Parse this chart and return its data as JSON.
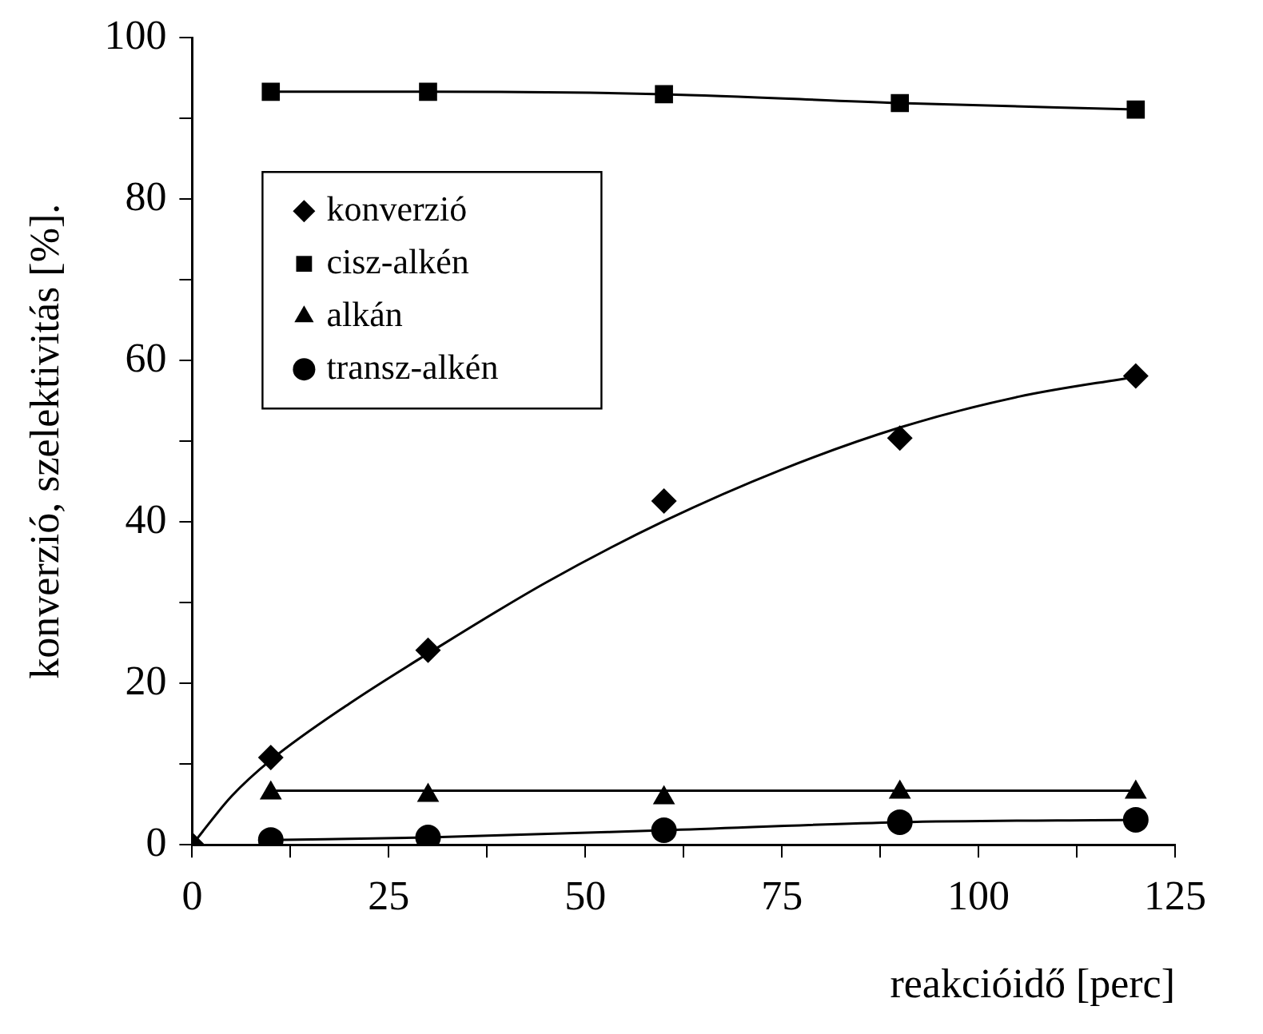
{
  "chart_data": {
    "type": "line",
    "xlabel": "reakcióidő [perc]",
    "ylabel": "konverzió, szelektivitás [%].",
    "xlim": [
      0,
      125
    ],
    "xticks": [
      0,
      {
        "value": 12.5,
        "label": null
      },
      25,
      {
        "value": 37.5,
        "label": null
      },
      50,
      {
        "value": 62.5,
        "label": null
      },
      75,
      {
        "value": 87.5,
        "label": null
      },
      100,
      {
        "value": 112.5,
        "label": null
      },
      125
    ],
    "ylim": [
      0,
      100
    ],
    "yticks": [
      0,
      {
        "value": 10,
        "label": null
      },
      20,
      {
        "value": 30,
        "label": null
      },
      40,
      {
        "value": 50,
        "label": null
      },
      60,
      {
        "value": 70,
        "label": null
      },
      80,
      {
        "value": 90,
        "label": null
      },
      100
    ],
    "grid": false,
    "legend": "top left",
    "series": [
      {
        "name": "konverzió",
        "type": "scatter",
        "color": "#000000",
        "marker": "diamond",
        "x": [
          0,
          10,
          30,
          60,
          90,
          120
        ],
        "values": [
          0,
          10.8,
          24.1,
          42.6,
          50.4,
          58.1
        ]
      },
      {
        "name": "cisz-alkén",
        "type": "line",
        "color": "#000000",
        "marker": "square",
        "x": [
          10,
          30,
          60,
          90,
          120
        ],
        "values": [
          93.3,
          93.3,
          93.0,
          91.9,
          91.1
        ]
      },
      {
        "name": "alkán",
        "type": "scatter",
        "color": "#000000",
        "marker": "triangle",
        "x": [
          10,
          30,
          60,
          90,
          120
        ],
        "values": [
          6.4,
          6.1,
          5.8,
          6.5,
          6.5
        ]
      },
      {
        "name": "transz-alkén",
        "type": "line",
        "color": "#000000",
        "marker": "circle",
        "x": [
          10,
          30,
          60,
          90,
          120
        ],
        "values": [
          0.6,
          0.9,
          1.8,
          2.8,
          3.1
        ]
      },
      {
        "type": "line",
        "color": "#000000",
        "marker": "none",
        "x": [
          0,
          5,
          10,
          20,
          30,
          45,
          60,
          75,
          90,
          105,
          120
        ],
        "values": [
          0,
          6,
          10.5,
          17.5,
          23.7,
          32.5,
          40.1,
          46.5,
          51.7,
          55.5,
          58
        ]
      },
      {
        "type": "line",
        "color": "#000000",
        "marker": "none",
        "x": [
          10,
          120
        ],
        "values": [
          6.7,
          6.7
        ]
      }
    ]
  }
}
